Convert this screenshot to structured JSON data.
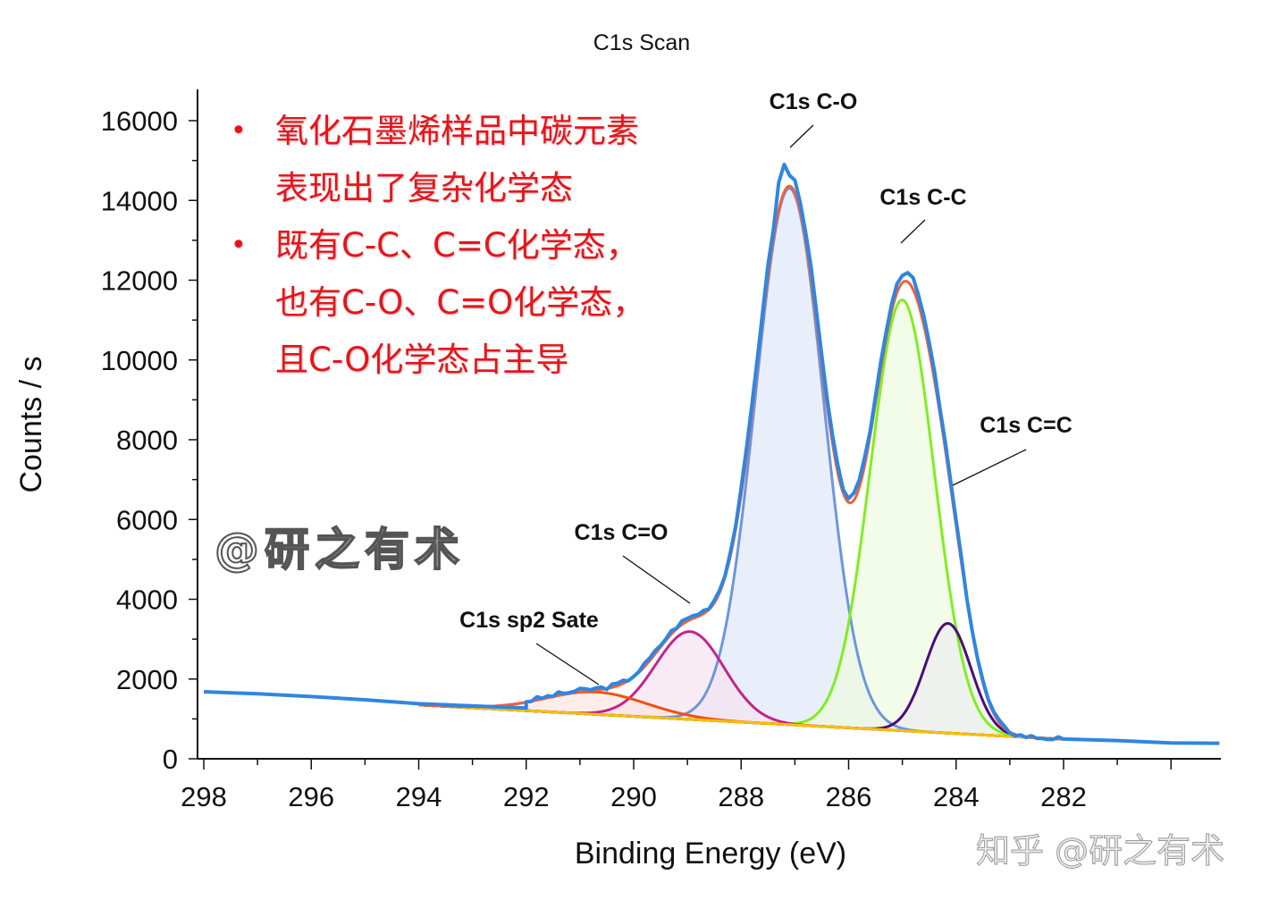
{
  "chart_data": {
    "type": "line",
    "title": "C1s Scan",
    "xlabel": "Binding Energy (eV)",
    "ylabel": "Counts / s",
    "xlim": [
      298.1,
      279.1
    ],
    "ylim": [
      0,
      16800
    ],
    "x_reversed": true,
    "xticks": [
      298,
      296,
      294,
      292,
      290,
      288,
      286,
      284,
      282
    ],
    "yticks": [
      0,
      2000,
      4000,
      6000,
      8000,
      10000,
      12000,
      14000,
      16000
    ],
    "grid": false,
    "background": {
      "name": "",
      "points": [
        [
          294,
          1350
        ],
        [
          282,
          490
        ]
      ],
      "color": "#f5c000"
    },
    "measured": {
      "color": "#2f86e0",
      "baseline_points": [
        [
          298,
          1680
        ],
        [
          297,
          1630
        ],
        [
          296,
          1560
        ],
        [
          295,
          1480
        ],
        [
          294,
          1380
        ],
        [
          292,
          1270
        ],
        [
          282,
          480
        ],
        [
          281,
          440
        ],
        [
          280,
          410
        ],
        [
          279.1,
          400
        ]
      ]
    },
    "envelope": {
      "color": "#f0603a"
    },
    "components": [
      {
        "label": "C1s C-O",
        "center": 287.1,
        "height": 13450,
        "fwhm": 1.5,
        "color": "#6f95dc",
        "fill": "#dfe8f8"
      },
      {
        "label": "C1s C-C",
        "center": 285.0,
        "height": 10800,
        "fwhm": 1.4,
        "color": "#80ee20",
        "fill": "#eefbe0"
      },
      {
        "label": "C1s C=C",
        "center": 284.15,
        "height": 2750,
        "fwhm": 1.0,
        "color": "#4a0e78",
        "fill": "#ececf0"
      },
      {
        "label": "C1s C=O",
        "center": 288.95,
        "height": 2200,
        "fwhm": 1.5,
        "color": "#c0268c",
        "fill": "#f7e2ef"
      },
      {
        "label": "C1s sp2 Sate",
        "center": 290.7,
        "height": 560,
        "fwhm": 2.2,
        "color": "#f05010",
        "fill": "#fbe6e0"
      }
    ]
  },
  "notes": [
    "氧化石墨烯样品中碳元素表现出了复杂化学态",
    "既有C-C、C=C化学态，也有C-O、C=O化学态，且C-O化学态占主导"
  ],
  "bullet": "•",
  "watermark": "@研之有术",
  "footer_watermark": "知乎 @研之有术"
}
